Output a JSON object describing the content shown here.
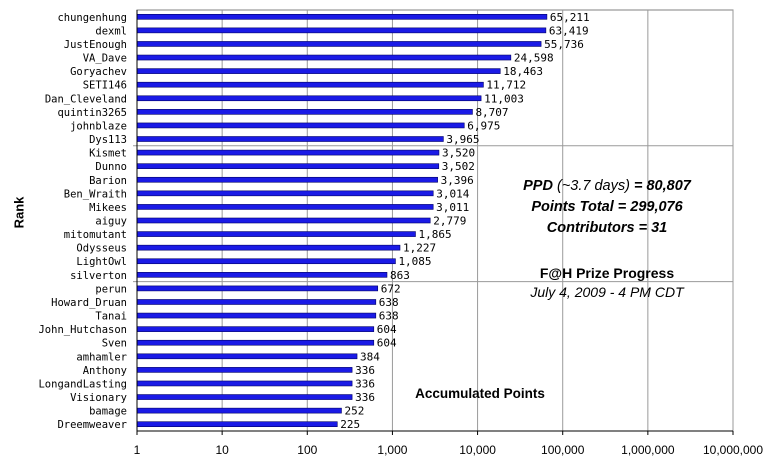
{
  "chart_data": {
    "type": "bar",
    "orientation": "horizontal",
    "title": "F@H Prize Progress",
    "subtitle": "July 4, 2009 - 4 PM CDT",
    "ylabel": "Rank",
    "xlabel": "Accumulated Points",
    "x_scale": "log",
    "xlim": [
      1,
      10000000
    ],
    "x_ticks": [
      "1",
      "10",
      "100",
      "1,000",
      "10,000",
      "100,000",
      "1,000,000",
      "10,000,000"
    ],
    "x_tick_values": [
      1,
      10,
      100,
      1000,
      10000,
      100000,
      1000000,
      10000000
    ],
    "grid": "vertical",
    "categories": [
      "chungenhung",
      "dexml",
      "JustEnough",
      "VA_Dave",
      "Goryachev",
      "SETI146",
      "Dan_Cleveland",
      "quintin3265",
      "johnblaze",
      "Dys113",
      "Kismet",
      "Dunno",
      "Barion",
      "Ben_Wraith",
      "Mikees",
      "aiguy",
      "mitomutant",
      "Odysseus",
      "LightOwl",
      "silverton",
      "perun",
      "Howard_Druan",
      "Tanai",
      "John_Hutchason",
      "Sven",
      "amhamler",
      "Anthony",
      "LongandLasting",
      "Visionary",
      "bamage",
      "Dreemweaver"
    ],
    "values": [
      65211,
      63419,
      55736,
      24598,
      18463,
      11712,
      11003,
      8707,
      6975,
      3965,
      3520,
      3502,
      3396,
      3014,
      3011,
      2779,
      1865,
      1227,
      1085,
      863,
      672,
      638,
      638,
      604,
      604,
      384,
      336,
      336,
      336,
      252,
      225
    ],
    "value_labels": [
      "65,211",
      "63,419",
      "55,736",
      "24,598",
      "18,463",
      "11,712",
      "11,003",
      "8,707",
      "6,975",
      "3,965",
      "3,520",
      "3,502",
      "3,396",
      "3,014",
      "3,011",
      "2,779",
      "1,865",
      "1,227",
      "1,085",
      "863",
      "672",
      "638",
      "638",
      "604",
      "604",
      "384",
      "336",
      "336",
      "336",
      "252",
      "225"
    ],
    "bar_color": "#1a1ae6"
  },
  "annotations": {
    "ppd_label": "PPD",
    "ppd_days": "(~3.7 days)",
    "ppd_value": "= 80,807",
    "points_total": "Points Total = 299,076",
    "contributors": "Contributors = 31"
  }
}
